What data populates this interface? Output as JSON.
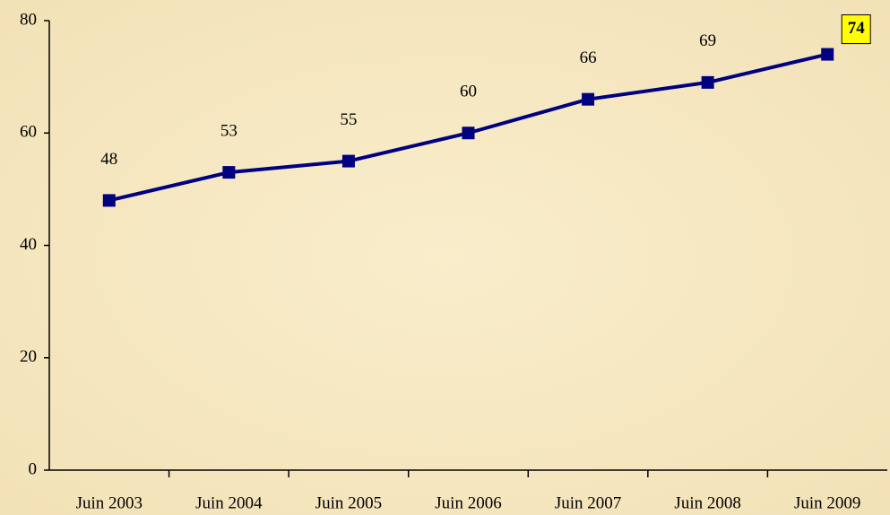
{
  "chart_data": {
    "type": "line",
    "categories": [
      "Juin 2003",
      "Juin 2004",
      "Juin 2005",
      "Juin 2006",
      "Juin 2007",
      "Juin 2008",
      "Juin 2009"
    ],
    "series": [
      {
        "name": null,
        "color": "#000080",
        "values": [
          48,
          53,
          55,
          60,
          66,
          69,
          74
        ]
      }
    ],
    "ylim": [
      0,
      80
    ],
    "yticks": [
      0,
      20,
      40,
      60,
      80
    ],
    "grid": false
  }
}
